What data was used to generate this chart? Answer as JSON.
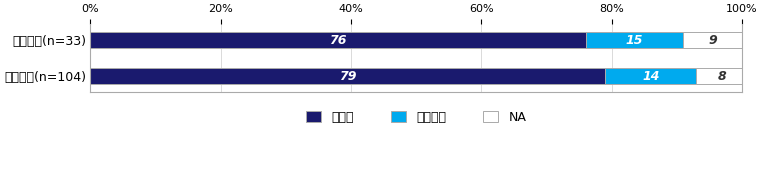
{
  "categories": [
    "３年未満(n=33)",
    "３年以上(n=104)"
  ],
  "series": [
    {
      "label": "あった",
      "values": [
        76,
        79
      ],
      "color": "#1a1a6e"
    },
    {
      "label": "なかった",
      "values": [
        15,
        14
      ],
      "color": "#00aaee"
    },
    {
      "label": "NA",
      "values": [
        9,
        8
      ],
      "color": "#ffffff"
    }
  ],
  "xlim": [
    0,
    100
  ],
  "xticks": [
    0,
    20,
    40,
    60,
    80,
    100
  ],
  "xticklabels": [
    "0%",
    "20%",
    "40%",
    "60%",
    "80%",
    "100%"
  ],
  "bar_height": 0.45,
  "bar_edge_color": "#aaaaaa",
  "background_color": "#ffffff",
  "text_color_white": "#ffffff",
  "text_color_dark": "#333333",
  "legend_marker_size": 10,
  "fontsize_labels": 9,
  "fontsize_ticks": 8,
  "fontsize_bar_text": 9,
  "fontsize_legend": 9
}
